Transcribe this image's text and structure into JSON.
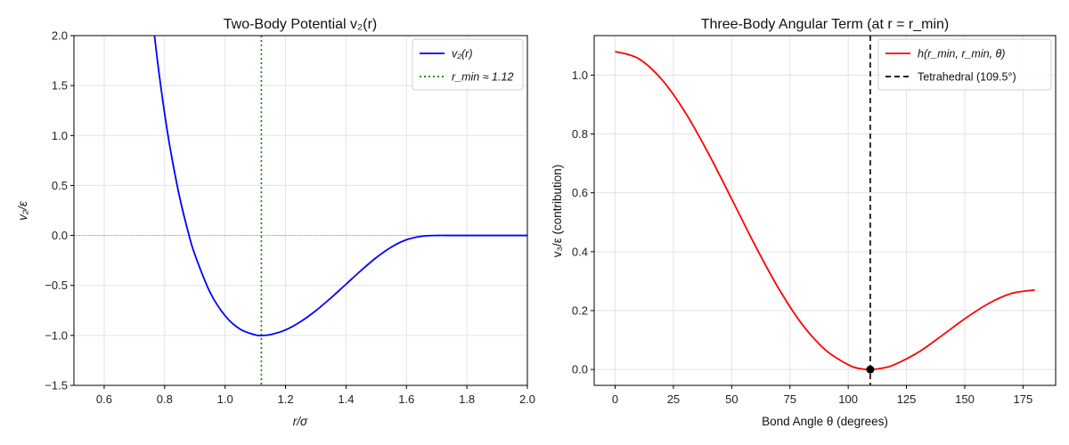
{
  "chart_data": [
    {
      "type": "line",
      "title": "Two-Body Potential v₂(r)",
      "xlabel": "r/σ",
      "ylabel": "v₂/ε",
      "xlim": [
        0.5,
        2.0
      ],
      "ylim": [
        -1.5,
        2.0
      ],
      "xticks": [
        "0.6",
        "0.8",
        "1.0",
        "1.2",
        "1.4",
        "1.6",
        "1.8",
        "2.0"
      ],
      "xtick_values": [
        0.6,
        0.8,
        1.0,
        1.2,
        1.4,
        1.6,
        1.8,
        2.0
      ],
      "yticks": [
        "−1.5",
        "−1.0",
        "−0.5",
        "0.0",
        "0.5",
        "1.0",
        "1.5",
        "2.0"
      ],
      "ytick_values": [
        -1.5,
        -1.0,
        -0.5,
        0.0,
        0.5,
        1.0,
        1.5,
        2.0
      ],
      "grid": true,
      "legend_position": "top-right",
      "series": [
        {
          "name": "v₂(r)",
          "color": "#0000ff",
          "style": "solid",
          "x": [
            0.75,
            0.76,
            0.78,
            0.8,
            0.82,
            0.85,
            0.88,
            0.9,
            0.95,
            1.0,
            1.05,
            1.1,
            1.12,
            1.15,
            1.2,
            1.25,
            1.3,
            1.35,
            1.4,
            1.45,
            1.5,
            1.55,
            1.6,
            1.65,
            1.7,
            1.75,
            1.8,
            1.9,
            2.0
          ],
          "y": [
            2.457,
            2.17,
            1.658,
            1.22,
            0.844,
            0.378,
            0.01,
            -0.191,
            -0.567,
            -0.803,
            -0.938,
            -0.995,
            -1.0,
            -0.992,
            -0.945,
            -0.862,
            -0.753,
            -0.625,
            -0.488,
            -0.35,
            -0.222,
            -0.116,
            -0.043,
            -0.008,
            0.0,
            0.0,
            0.0,
            0.0,
            0.0
          ]
        }
      ],
      "vlines": [
        {
          "name": "r_min ≈ 1.12",
          "x": 1.12,
          "color": "#008000",
          "style": "dotted"
        }
      ],
      "hlines": [
        {
          "y": 0.0,
          "color": "#808080",
          "style": "dotted"
        }
      ]
    },
    {
      "type": "line",
      "title": "Three-Body Angular Term (at r = r_min)",
      "xlabel": "Bond Angle θ (degrees)",
      "ylabel": "v₃/ε (contribution)",
      "xlim": [
        -9,
        189
      ],
      "ylim": [
        -0.054,
        1.134
      ],
      "xticks": [
        "0",
        "25",
        "50",
        "75",
        "100",
        "125",
        "150",
        "175"
      ],
      "xtick_values": [
        0,
        25,
        50,
        75,
        100,
        125,
        150,
        175
      ],
      "yticks": [
        "0.0",
        "0.2",
        "0.4",
        "0.6",
        "0.8",
        "1.0"
      ],
      "ytick_values": [
        0,
        0.2,
        0.4,
        0.6,
        0.8,
        1.0
      ],
      "grid": true,
      "legend_position": "top-right",
      "series": [
        {
          "name": "h(r_min, r_min, θ)",
          "color": "#ff0000",
          "style": "solid",
          "x": [
            0,
            10,
            20,
            30,
            40,
            50,
            60,
            70,
            80,
            90,
            100,
            105,
            109.47,
            115,
            120,
            130,
            140,
            150,
            160,
            170,
            180
          ],
          "y": [
            1.08,
            1.056,
            0.985,
            0.874,
            0.734,
            0.579,
            0.422,
            0.277,
            0.156,
            0.068,
            0.016,
            0.003,
            0.0,
            0.005,
            0.017,
            0.058,
            0.114,
            0.172,
            0.223,
            0.258,
            0.27
          ]
        }
      ],
      "vlines": [
        {
          "name": "Tetrahedral (109.5°)",
          "x": 109.47,
          "color": "#000000",
          "style": "dashed"
        }
      ],
      "points": [
        {
          "x": 109.47,
          "y": 0.0,
          "color": "#000000"
        }
      ]
    }
  ]
}
